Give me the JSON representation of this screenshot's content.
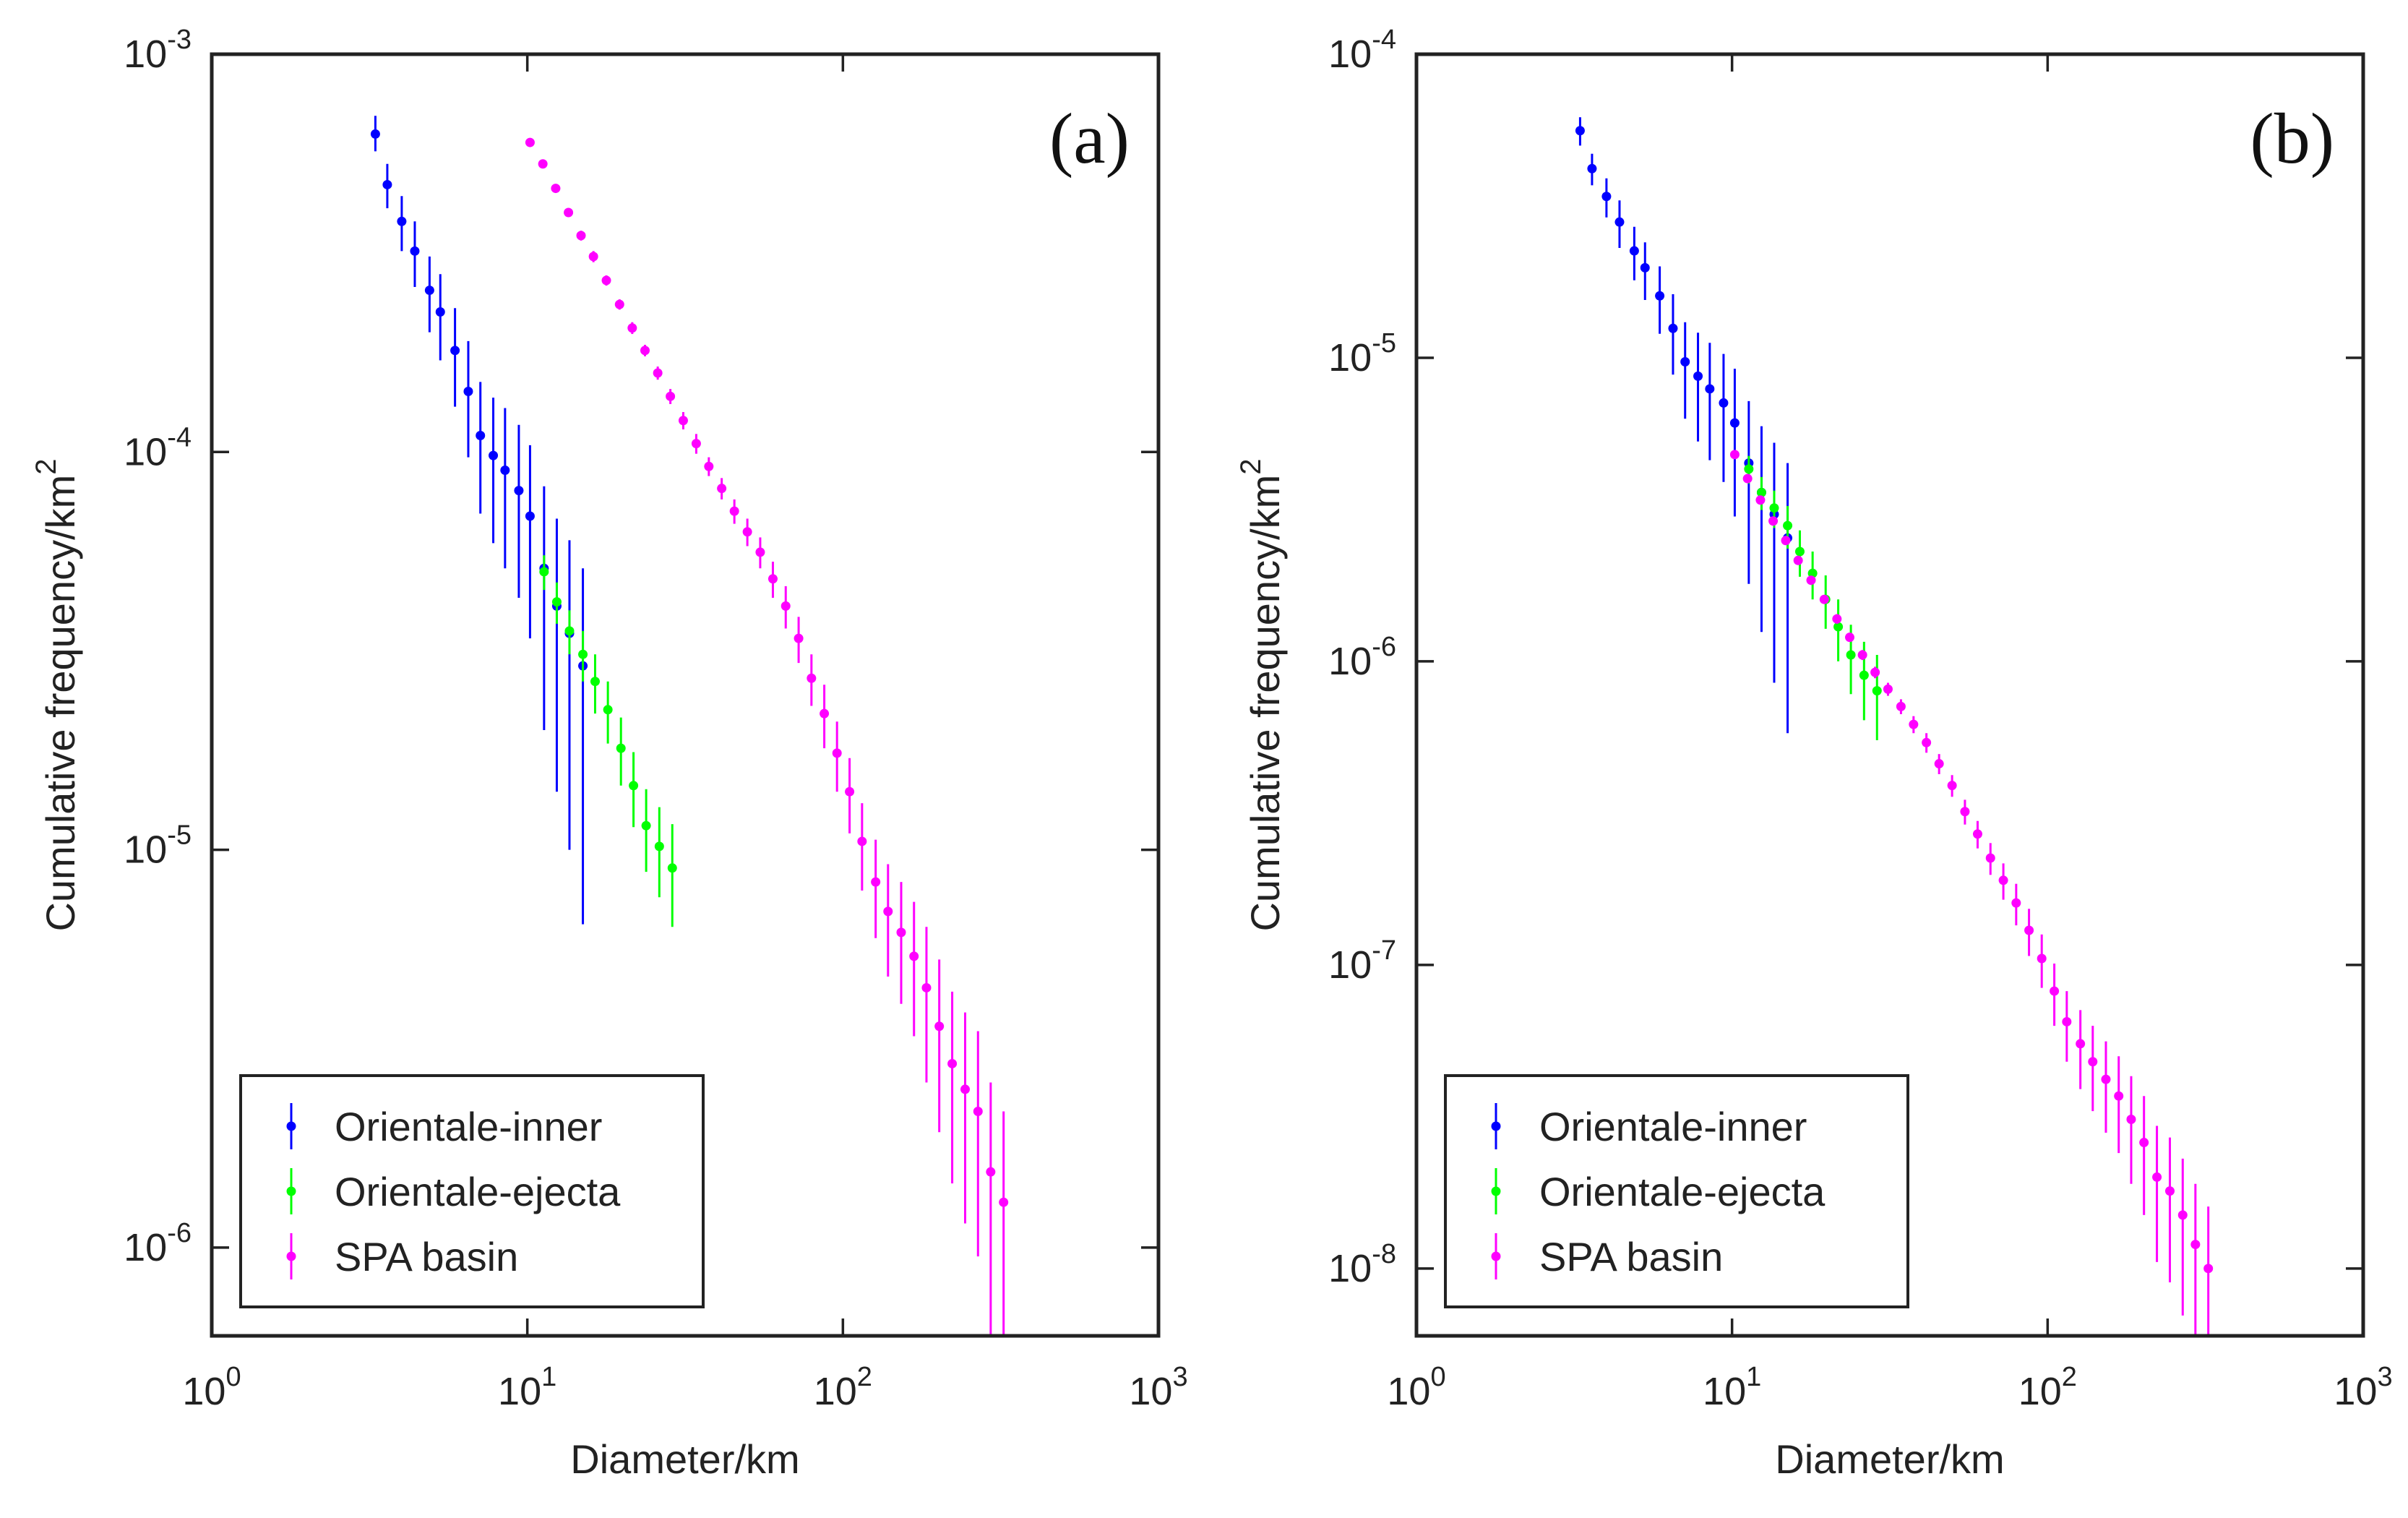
{
  "figure": {
    "description_panels": [
      "a",
      "b"
    ]
  },
  "chart_data": [
    {
      "type": "scatter",
      "panel_label": "(a)",
      "xlabel": "Diameter/km",
      "ylabel_base": "Cumulative frequency/km",
      "ylabel_sup": "2",
      "xscale": "log",
      "yscale": "log",
      "xlim": [
        1,
        1000
      ],
      "ylim": [
        6e-07,
        0.001
      ],
      "x_tick_exponents": [
        0,
        1,
        2,
        3
      ],
      "y_tick_exponents": [
        -6,
        -5,
        -4,
        -3
      ],
      "tick_base": "10",
      "legend_position": "bottom-left",
      "series": [
        {
          "name": "Orientale-inner",
          "color": "#0000ff",
          "x": [
            3.3,
            3.6,
            4.0,
            4.4,
            4.9,
            5.3,
            5.9,
            6.5,
            7.1,
            7.8,
            8.5,
            9.4,
            10.2,
            11.3,
            12.4,
            13.6,
            15.0
          ],
          "y": [
            0.00063,
            0.00047,
            0.00038,
            0.00032,
            0.000255,
            0.000225,
            0.00018,
            0.000142,
            0.00011,
            9.8e-05,
            9e-05,
            8e-05,
            6.9e-05,
            5.1e-05,
            4.1e-05,
            3.5e-05,
            2.9e-05
          ],
          "err_lo": [
            0.00057,
            0.00041,
            0.00032,
            0.00026,
            0.0002,
            0.00017,
            0.00013,
            9.7e-05,
            7e-05,
            5.9e-05,
            5.1e-05,
            4.3e-05,
            3.4e-05,
            2e-05,
            1.4e-05,
            1e-05,
            6.5e-06
          ],
          "err_hi": [
            0.0007,
            0.00053,
            0.00044,
            0.00038,
            0.00031,
            0.00028,
            0.00023,
            0.00019,
            0.00015,
            0.000137,
            0.000129,
            0.000117,
            0.000104,
            8.2e-05,
            6.8e-05,
            6e-05,
            5.1e-05
          ]
        },
        {
          "name": "Orientale-ejecta",
          "color": "#00ff00",
          "x": [
            11.3,
            12.4,
            13.6,
            15.0,
            16.4,
            18.0,
            19.8,
            21.7,
            23.8,
            26.2,
            28.8
          ],
          "y": [
            5e-05,
            4.2e-05,
            3.55e-05,
            3.1e-05,
            2.65e-05,
            2.25e-05,
            1.8e-05,
            1.45e-05,
            1.15e-05,
            1.02e-05,
            9e-06
          ],
          "err_lo": [
            4.5e-05,
            3.7e-05,
            3.1e-05,
            2.65e-05,
            2.2e-05,
            1.85e-05,
            1.45e-05,
            1.14e-05,
            8.8e-06,
            7.6e-06,
            6.4e-06
          ],
          "err_hi": [
            5.5e-05,
            4.7e-05,
            4e-05,
            3.55e-05,
            3.1e-05,
            2.65e-05,
            2.15e-05,
            1.76e-05,
            1.42e-05,
            1.28e-05,
            1.16e-05
          ]
        },
        {
          "name": "SPA basin",
          "color": "#ff00ff",
          "x": [
            10.2,
            11.2,
            12.3,
            13.5,
            14.8,
            16.2,
            17.8,
            19.6,
            21.5,
            23.6,
            25.9,
            28.4,
            31.2,
            34.3,
            37.6,
            41.3,
            45.3,
            49.8,
            54.7,
            60.0,
            65.9,
            72.4,
            79.5,
            87.3,
            95.8,
            105,
            115,
            127,
            139,
            153,
            168,
            184,
            202,
            222,
            244,
            268,
            294,
            323
          ],
          "y": [
            0.0006,
            0.00053,
            0.00046,
            0.0004,
            0.00035,
            0.00031,
            0.00027,
            0.000235,
            0.000205,
            0.00018,
            0.000158,
            0.000138,
            0.00012,
            0.000105,
            9.2e-05,
            8.1e-05,
            7.1e-05,
            6.3e-05,
            5.6e-05,
            4.8e-05,
            4.1e-05,
            3.4e-05,
            2.7e-05,
            2.2e-05,
            1.75e-05,
            1.4e-05,
            1.05e-05,
            8.3e-06,
            7e-06,
            6.2e-06,
            5.4e-06,
            4.5e-06,
            3.6e-06,
            2.9e-06,
            2.5e-06,
            2.2e-06,
            1.55e-06,
            1.3e-06
          ],
          "err_lo": [
            0.00059,
            0.00052,
            0.00045,
            0.00039,
            0.00034,
            0.0003,
            0.000262,
            0.000228,
            0.000198,
            0.000174,
            0.000152,
            0.000132,
            0.000114,
            9.9e-05,
            8.7e-05,
            7.6e-05,
            6.6e-05,
            5.8e-05,
            5.1e-05,
            4.3e-05,
            3.6e-05,
            2.95e-05,
            2.3e-05,
            1.8e-05,
            1.4e-05,
            1.1e-05,
            7.9e-06,
            6e-06,
            4.8e-06,
            4.1e-06,
            3.4e-06,
            2.6e-06,
            1.95e-06,
            1.45e-06,
            1.15e-06,
            9.5e-07,
            5.5e-07,
            5e-07
          ],
          "err_hi": [
            0.00061,
            0.00054,
            0.00047,
            0.00041,
            0.00036,
            0.00032,
            0.000278,
            0.000242,
            0.000212,
            0.000186,
            0.000164,
            0.000144,
            0.000126,
            0.000111,
            9.7e-05,
            8.6e-05,
            7.6e-05,
            6.8e-05,
            6.1e-05,
            5.3e-05,
            4.6e-05,
            3.85e-05,
            3.1e-05,
            2.6e-05,
            2.1e-05,
            1.7e-05,
            1.31e-05,
            1.06e-05,
            9.2e-06,
            8.3e-06,
            7.4e-06,
            6.4e-06,
            5.3e-06,
            4.4e-06,
            3.9e-06,
            3.5e-06,
            2.6e-06,
            2.2e-06
          ]
        }
      ]
    },
    {
      "type": "scatter",
      "panel_label": "(b)",
      "xlabel": "Diameter/km",
      "ylabel_base": "Cumulative frequency/km",
      "ylabel_sup": "2",
      "xscale": "log",
      "yscale": "log",
      "xlim": [
        1,
        1000
      ],
      "ylim": [
        6e-09,
        0.0001
      ],
      "x_tick_exponents": [
        0,
        1,
        2,
        3
      ],
      "y_tick_exponents": [
        -8,
        -7,
        -6,
        -5,
        -4
      ],
      "tick_base": "10",
      "legend_position": "bottom-left",
      "series": [
        {
          "name": "Orientale-inner",
          "color": "#0000ff",
          "x": [
            3.3,
            3.6,
            4.0,
            4.4,
            4.9,
            5.3,
            5.9,
            6.5,
            7.1,
            7.8,
            8.5,
            9.4,
            10.2,
            11.3,
            12.4,
            13.6,
            15.0
          ],
          "y": [
            5.6e-05,
            4.2e-05,
            3.4e-05,
            2.8e-05,
            2.25e-05,
            1.98e-05,
            1.6e-05,
            1.25e-05,
            9.7e-06,
            8.7e-06,
            7.9e-06,
            7.1e-06,
            6.1e-06,
            4.5e-06,
            3.6e-06,
            3.05e-06,
            2.55e-06
          ],
          "err_lo": [
            5e-05,
            3.7e-05,
            2.9e-05,
            2.3e-05,
            1.8e-05,
            1.55e-05,
            1.2e-05,
            8.8e-06,
            6.3e-06,
            5.3e-06,
            4.6e-06,
            3.9e-06,
            3e-06,
            1.8e-06,
            1.25e-06,
            8.5e-07,
            5.8e-07
          ],
          "err_hi": [
            6.2e-05,
            4.7e-05,
            3.9e-05,
            3.3e-05,
            2.7e-05,
            2.4e-05,
            2e-05,
            1.62e-05,
            1.31e-05,
            1.21e-05,
            1.12e-05,
            1.03e-05,
            9.2e-06,
            7.2e-06,
            5.95e-06,
            5.25e-06,
            4.5e-06
          ]
        },
        {
          "name": "Orientale-ejecta",
          "color": "#00ff00",
          "x": [
            11.3,
            12.4,
            13.6,
            15.0,
            16.4,
            18.0,
            19.8,
            21.7,
            23.8,
            26.2,
            28.8
          ],
          "y": [
            4.3e-06,
            3.6e-06,
            3.2e-06,
            2.8e-06,
            2.3e-06,
            1.95e-06,
            1.6e-06,
            1.3e-06,
            1.05e-06,
            9e-07,
            8e-07
          ],
          "err_lo": [
            3.85e-06,
            3.15e-06,
            2.75e-06,
            2.35e-06,
            1.9e-06,
            1.6e-06,
            1.28e-06,
            1e-06,
            7.8e-07,
            6.4e-07,
            5.5e-07
          ],
          "err_hi": [
            4.75e-06,
            4.05e-06,
            3.65e-06,
            3.25e-06,
            2.7e-06,
            2.3e-06,
            1.92e-06,
            1.6e-06,
            1.32e-06,
            1.16e-06,
            1.05e-06
          ]
        },
        {
          "name": "SPA basin",
          "color": "#ff00ff",
          "x": [
            10.2,
            11.2,
            12.3,
            13.5,
            14.8,
            16.2,
            17.8,
            19.6,
            21.5,
            23.6,
            25.9,
            28.4,
            31.2,
            34.3,
            37.6,
            41.3,
            45.3,
            49.8,
            54.7,
            60.0,
            65.9,
            72.4,
            79.5,
            87.3,
            95.8,
            105,
            115,
            127,
            139,
            153,
            168,
            184,
            202,
            222,
            244,
            268,
            294,
            323
          ],
          "y": [
            4.8e-06,
            4e-06,
            3.4e-06,
            2.9e-06,
            2.5e-06,
            2.15e-06,
            1.85e-06,
            1.6e-06,
            1.38e-06,
            1.2e-06,
            1.05e-06,
            9.2e-07,
            8.1e-07,
            7.1e-07,
            6.2e-07,
            5.4e-07,
            4.6e-07,
            3.9e-07,
            3.2e-07,
            2.7e-07,
            2.25e-07,
            1.9e-07,
            1.6e-07,
            1.3e-07,
            1.05e-07,
            8.2e-08,
            6.5e-08,
            5.5e-08,
            4.8e-08,
            4.2e-08,
            3.7e-08,
            3.1e-08,
            2.6e-08,
            2e-08,
            1.8e-08,
            1.5e-08,
            1.2e-08,
            1e-08
          ],
          "err_lo": [
            4.7e-06,
            3.9e-06,
            3.3e-06,
            2.8e-06,
            2.42e-06,
            2.08e-06,
            1.79e-06,
            1.55e-06,
            1.33e-06,
            1.16e-06,
            1.01e-06,
            8.8e-07,
            7.7e-07,
            6.7e-07,
            5.8e-07,
            5e-07,
            4.25e-07,
            3.58e-07,
            2.9e-07,
            2.42e-07,
            1.98e-07,
            1.64e-07,
            1.35e-07,
            1.07e-07,
            8.4e-08,
            6.3e-08,
            4.8e-08,
            3.9e-08,
            3.3e-08,
            2.8e-08,
            2.4e-08,
            1.9e-08,
            1.5e-08,
            1.05e-08,
            9e-09,
            7e-09,
            5e-09,
            4e-09
          ],
          "err_hi": [
            4.9e-06,
            4.1e-06,
            3.5e-06,
            3e-06,
            2.58e-06,
            2.22e-06,
            1.91e-06,
            1.65e-06,
            1.43e-06,
            1.24e-06,
            1.09e-06,
            9.6e-07,
            8.5e-07,
            7.5e-07,
            6.6e-07,
            5.8e-07,
            4.95e-07,
            4.22e-07,
            3.5e-07,
            2.98e-07,
            2.52e-07,
            2.16e-07,
            1.85e-07,
            1.53e-07,
            1.26e-07,
            1.01e-07,
            8.2e-08,
            7.1e-08,
            6.3e-08,
            5.6e-08,
            5e-08,
            4.3e-08,
            3.7e-08,
            2.95e-08,
            2.7e-08,
            2.3e-08,
            1.9e-08,
            1.6e-08
          ]
        }
      ]
    }
  ]
}
